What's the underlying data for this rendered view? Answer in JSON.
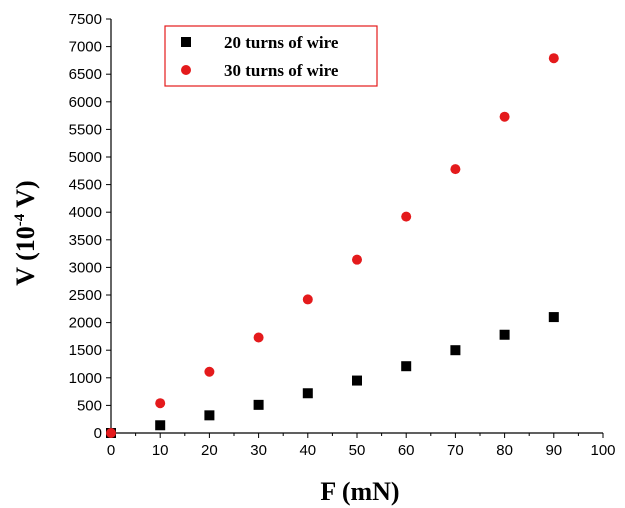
{
  "chart_data": {
    "type": "scatter",
    "title": "",
    "xlabel": "F (mN)",
    "ylabel": {
      "prefix": "V (10",
      "exponent": "-4",
      "suffix": " V)"
    },
    "xlim": [
      0,
      100
    ],
    "ylim": [
      0,
      7500
    ],
    "xticks": [
      0,
      10,
      20,
      30,
      40,
      50,
      60,
      70,
      80,
      90,
      100
    ],
    "yticks": [
      0,
      500,
      1000,
      1500,
      2000,
      2500,
      3000,
      3500,
      4000,
      4500,
      5000,
      5500,
      6000,
      6500,
      7000,
      7500
    ],
    "grid": false,
    "legend_position": "top-left",
    "series": [
      {
        "name": "20 turns of wire",
        "marker": "square",
        "color": "#000000",
        "x": [
          0,
          10,
          20,
          30,
          40,
          50,
          60,
          70,
          80,
          90
        ],
        "y": [
          0,
          140,
          320,
          510,
          720,
          950,
          1210,
          1500,
          1780,
          2100
        ]
      },
      {
        "name": "30 turns of wire",
        "marker": "circle",
        "color": "#e41a1c",
        "x": [
          0,
          10,
          20,
          30,
          40,
          50,
          60,
          70,
          80,
          90
        ],
        "y": [
          0,
          540,
          1110,
          1730,
          2420,
          3140,
          3920,
          4780,
          5730,
          6790
        ]
      }
    ],
    "legend_border_color": "#e41a1c"
  }
}
